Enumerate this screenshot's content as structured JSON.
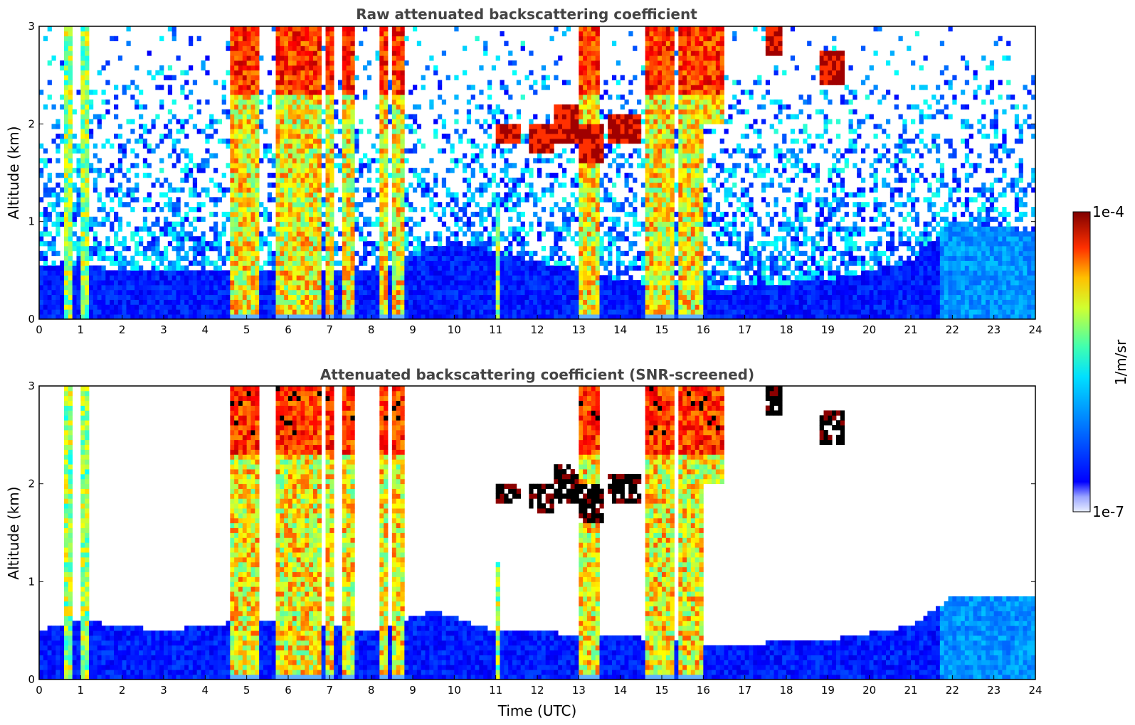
{
  "chart_data": [
    {
      "type": "heatmap",
      "title": "Raw attenuated backscattering coefficient",
      "xlabel": "",
      "ylabel": "Altitude (km)",
      "xlim": [
        0,
        24
      ],
      "ylim": [
        0,
        3
      ],
      "xticks": [
        "0",
        "1",
        "2",
        "3",
        "4",
        "5",
        "6",
        "7",
        "8",
        "9",
        "10",
        "11",
        "12",
        "13",
        "14",
        "15",
        "16",
        "17",
        "18",
        "19",
        "20",
        "21",
        "22",
        "23",
        "24"
      ],
      "yticks": [
        "0",
        "1",
        "2",
        "3"
      ],
      "screened": false
    },
    {
      "type": "heatmap",
      "title": "Attenuated backscattering coefficient (SNR-screened)",
      "xlabel": "Time (UTC)",
      "ylabel": "Altitude (km)",
      "xlim": [
        0,
        24
      ],
      "ylim": [
        0,
        3
      ],
      "xticks": [
        "0",
        "1",
        "2",
        "3",
        "4",
        "5",
        "6",
        "7",
        "8",
        "9",
        "10",
        "11",
        "12",
        "13",
        "14",
        "15",
        "16",
        "17",
        "18",
        "19",
        "20",
        "21",
        "22",
        "23",
        "24"
      ],
      "yticks": [
        "0",
        "1",
        "2",
        "3"
      ],
      "screened": true
    }
  ],
  "colorbar": {
    "label": "1/m/sr",
    "max_label": "1e-4",
    "min_label": "1e-7",
    "scale": "log",
    "range": [
      1e-07,
      0.0001
    ],
    "colormap": "jet"
  },
  "features": {
    "boundary_layer_raw": [
      [
        0,
        0.55
      ],
      [
        3,
        0.5
      ],
      [
        8,
        0.5
      ],
      [
        10,
        0.8
      ],
      [
        14,
        0.4
      ],
      [
        16,
        0.3
      ],
      [
        19,
        0.4
      ],
      [
        21,
        0.6
      ],
      [
        22,
        1.0
      ],
      [
        24,
        0.9
      ]
    ],
    "boundary_layer_screened": [
      [
        0,
        0.5
      ],
      [
        1,
        0.6
      ],
      [
        3,
        0.5
      ],
      [
        5,
        0.6
      ],
      [
        8,
        0.5
      ],
      [
        9.5,
        0.7
      ],
      [
        11,
        0.5
      ],
      [
        14,
        0.45
      ],
      [
        16,
        0.35
      ],
      [
        19,
        0.4
      ],
      [
        21,
        0.55
      ],
      [
        22,
        0.85
      ],
      [
        24,
        0.85
      ]
    ],
    "low_clouds": [
      [
        4.6,
        5.3,
        0,
        3
      ],
      [
        5.7,
        6.8,
        0,
        3
      ],
      [
        6.9,
        7.1,
        0,
        3
      ],
      [
        7.3,
        7.6,
        0,
        3
      ],
      [
        8.2,
        8.4,
        0,
        3
      ],
      [
        8.5,
        8.8,
        0,
        3
      ],
      [
        13.0,
        13.5,
        0,
        3
      ],
      [
        14.6,
        15.3,
        0,
        3
      ],
      [
        15.4,
        16.0,
        0,
        3
      ],
      [
        16.0,
        16.5,
        2.0,
        3.0
      ]
    ],
    "thin_columns": [
      [
        0.6,
        0.8,
        0,
        3
      ],
      [
        1.0,
        1.2,
        0,
        3
      ],
      [
        11.0,
        11.1,
        0,
        1.2
      ]
    ],
    "mid_clouds": [
      [
        11.0,
        11.6,
        1.8,
        2.0
      ],
      [
        11.8,
        12.4,
        1.7,
        2.0
      ],
      [
        12.4,
        13.0,
        1.8,
        2.2
      ],
      [
        13.0,
        13.6,
        1.6,
        2.0
      ],
      [
        13.7,
        14.5,
        1.8,
        2.1
      ],
      [
        18.8,
        19.4,
        2.4,
        2.75
      ],
      [
        17.5,
        17.9,
        2.7,
        3.0
      ]
    ]
  }
}
